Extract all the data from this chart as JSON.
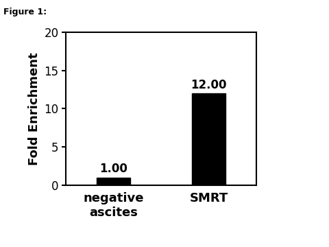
{
  "categories": [
    "negative\nascites",
    "SMRT"
  ],
  "values": [
    1.0,
    12.0
  ],
  "bar_labels": [
    "1.00",
    "12.00"
  ],
  "bar_color": "#000000",
  "ylabel": "Fold Enrichment",
  "ylim": [
    0,
    20
  ],
  "yticks": [
    0,
    5,
    10,
    15,
    20
  ],
  "figure_label": "Figure 1:",
  "bar_width": 0.35,
  "background_color": "#ffffff",
  "ylabel_fontsize": 13,
  "tick_fontsize": 12,
  "annotation_fontsize": 12,
  "xlabel_fontsize": 13
}
